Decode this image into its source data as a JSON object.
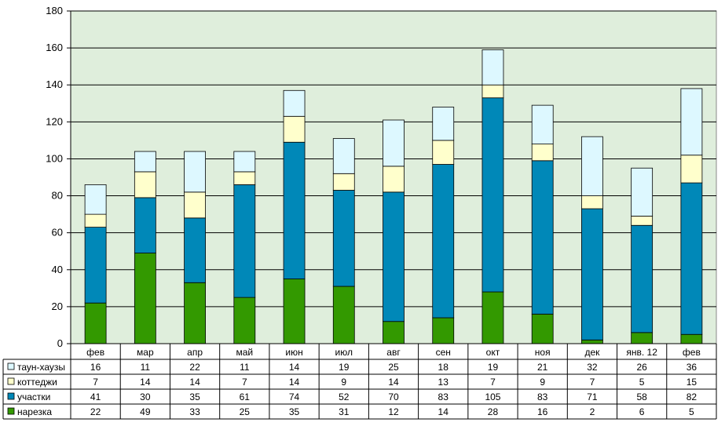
{
  "chart_data": {
    "type": "bar",
    "stacked": true,
    "categories": [
      "фев",
      "мар",
      "апр",
      "май",
      "июн",
      "июл",
      "авг",
      "сен",
      "окт",
      "ноя",
      "дек",
      "янв. 12",
      "фев"
    ],
    "series": [
      {
        "name": "нарезка",
        "color": "#339900",
        "values": [
          22,
          49,
          33,
          25,
          35,
          31,
          12,
          14,
          28,
          16,
          2,
          6,
          5
        ]
      },
      {
        "name": "участки",
        "color": "#0088b8",
        "values": [
          41,
          30,
          35,
          61,
          74,
          52,
          70,
          83,
          105,
          83,
          71,
          58,
          82
        ]
      },
      {
        "name": "коттеджи",
        "color": "#ffffcc",
        "values": [
          7,
          14,
          14,
          7,
          14,
          9,
          14,
          13,
          7,
          9,
          7,
          5,
          15
        ]
      },
      {
        "name": "таун-хаузы",
        "color": "#ddf8ff",
        "values": [
          16,
          11,
          22,
          11,
          14,
          19,
          25,
          18,
          19,
          21,
          32,
          26,
          36
        ]
      }
    ],
    "table_rows_order": [
      "таун-хаузы",
      "коттеджи",
      "участки",
      "нарезка"
    ],
    "yticks": [
      0,
      20,
      40,
      60,
      80,
      100,
      120,
      140,
      160,
      180
    ],
    "ylim": [
      0,
      180
    ],
    "grid": true,
    "legend": "data-table-below",
    "plot_background": "#dfeedc"
  }
}
